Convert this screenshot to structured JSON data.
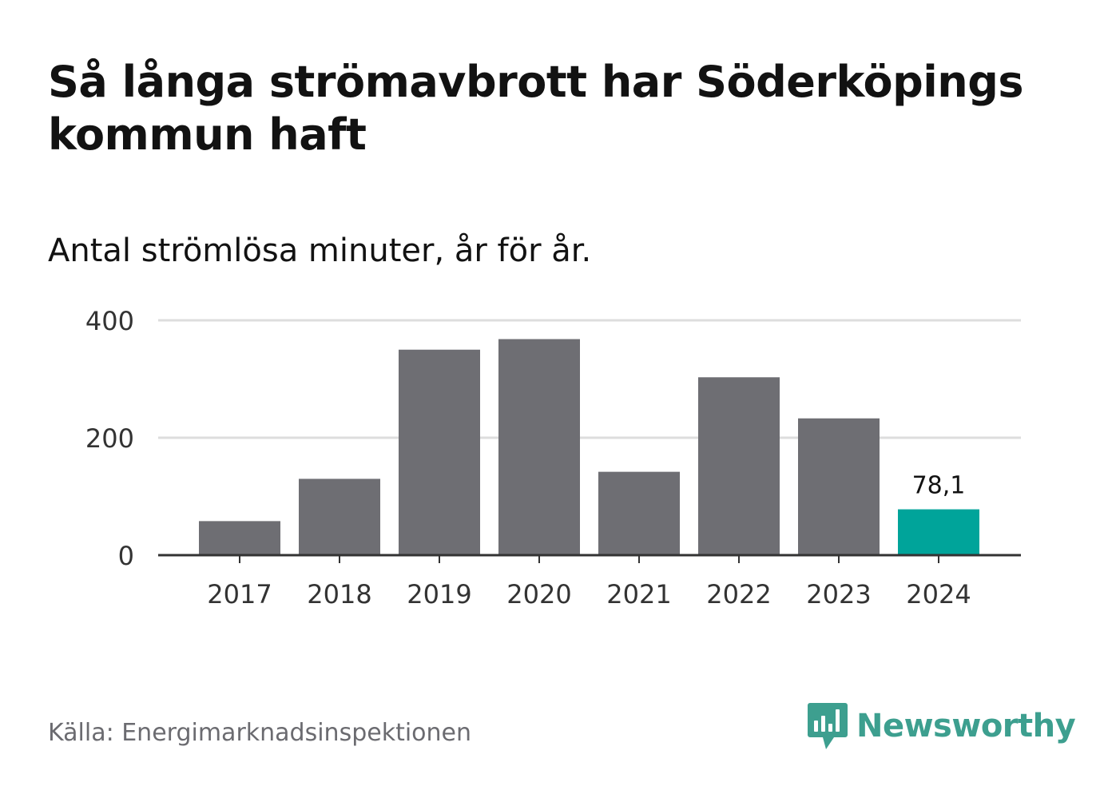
{
  "title": "Så långa strömavbrott har Söderköpings kommun haft",
  "subtitle": "Antal strömlösa minuter, år för år.",
  "source": "Källa: Energimarknadsinspektionen",
  "logo": {
    "name": "Newsworthy",
    "icon": "bar-chart-speech-bubble-icon"
  },
  "colors": {
    "bar": "#6e6e73",
    "highlight": "#00a49a",
    "grid": "#dddddd",
    "axis": "#333333",
    "brand": "#3d9f8f"
  },
  "chart_data": {
    "type": "bar",
    "title": "Så långa strömavbrott har Söderköpings kommun haft",
    "subtitle": "Antal strömlösa minuter, år för år.",
    "categories": [
      "2017",
      "2018",
      "2019",
      "2020",
      "2021",
      "2022",
      "2023",
      "2024"
    ],
    "values": [
      58,
      130,
      350,
      368,
      142,
      303,
      233,
      78.1
    ],
    "highlight_index": 7,
    "highlight_label": "78,1",
    "y_ticks": [
      "0",
      "200",
      "400"
    ],
    "y_tick_values": [
      0,
      200,
      400
    ],
    "ylim": [
      0,
      400
    ],
    "xlabel": "",
    "ylabel": "",
    "grid": true
  }
}
